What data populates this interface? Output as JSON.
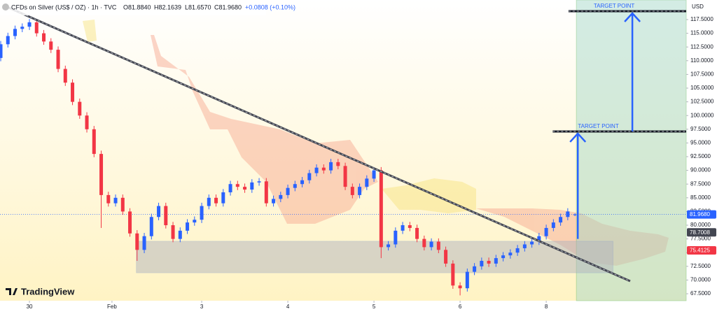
{
  "header": {
    "symbol": "CFDs on Silver (US$ / OZ) · 1h · TVC",
    "open": "O81.8840",
    "high": "H82.1639",
    "low": "L81.6570",
    "close": "C81.9680",
    "change": "+0.0808 (+0.10%)",
    "brand": "TradingView"
  },
  "chart_data": {
    "type": "candlestick",
    "currency": "USD",
    "up_color": "#2962ff",
    "down_color": "#f23645",
    "xlim": [
      -0.1,
      95.5
    ],
    "ylim": [
      66.23,
      121.07
    ],
    "xticks": [
      {
        "value": 4,
        "label": "30"
      },
      {
        "value": 15.5,
        "label": "Feb"
      },
      {
        "value": 28,
        "label": "3"
      },
      {
        "value": 40,
        "label": "4"
      },
      {
        "value": 52,
        "label": "5"
      },
      {
        "value": 64,
        "label": "6"
      },
      {
        "value": 76,
        "label": "8"
      }
    ],
    "yticks": [
      {
        "value": 67.5,
        "label": "67.5000"
      },
      {
        "value": 70,
        "label": "70.0000"
      },
      {
        "value": 72.5,
        "label": "72.5000"
      },
      {
        "value": 75,
        "label": "75.0000"
      },
      {
        "value": 77.5,
        "label": "77.5000"
      },
      {
        "value": 80,
        "label": "80.0000"
      },
      {
        "value": 82.5,
        "label": "82.5000"
      },
      {
        "value": 85,
        "label": "85.0000"
      },
      {
        "value": 87.5,
        "label": "87.5000"
      },
      {
        "value": 90,
        "label": "90.0000"
      },
      {
        "value": 92.5,
        "label": "92.5000"
      },
      {
        "value": 95,
        "label": "95.0000"
      },
      {
        "value": 97.5,
        "label": "97.5000"
      },
      {
        "value": 100,
        "label": "100.0000"
      },
      {
        "value": 102.5,
        "label": "102.5000"
      },
      {
        "value": 105,
        "label": "105.0000"
      },
      {
        "value": 107.5,
        "label": "107.5000"
      },
      {
        "value": 110,
        "label": "110.0000"
      },
      {
        "value": 112.5,
        "label": "112.5000"
      },
      {
        "value": 115,
        "label": "115.0000"
      },
      {
        "value": 117.5,
        "label": "117.5000"
      }
    ],
    "candles": [
      [
        110.5,
        113.6,
        109.9,
        113.0
      ],
      [
        113.0,
        115.1,
        112.4,
        114.5
      ],
      [
        114.5,
        116.4,
        113.9,
        115.8
      ],
      [
        115.8,
        116.8,
        115.2,
        116.2
      ],
      [
        116.2,
        117.6,
        115.6,
        117.0
      ],
      [
        117.0,
        117.6,
        114.4,
        115.0
      ],
      [
        115.0,
        115.6,
        112.9,
        113.5
      ],
      [
        113.5,
        114.1,
        111.4,
        112.0
      ],
      [
        112.0,
        112.6,
        107.9,
        108.5
      ],
      [
        108.5,
        109.1,
        105.4,
        106.0
      ],
      [
        106.0,
        106.6,
        101.9,
        102.5
      ],
      [
        102.5,
        103.1,
        99.4,
        100.0
      ],
      [
        100.0,
        100.6,
        96.9,
        97.5
      ],
      [
        97.5,
        98.1,
        92.4,
        93.0
      ],
      [
        93.0,
        93.6,
        79.5,
        85.5
      ],
      [
        85.5,
        86.1,
        83.4,
        84.0
      ],
      [
        84.0,
        85.6,
        83.4,
        85.0
      ],
      [
        85.0,
        85.6,
        81.9,
        82.5
      ],
      [
        82.5,
        83.1,
        77.9,
        78.5
      ],
      [
        78.5,
        79.1,
        73.5,
        75.5
      ],
      [
        75.5,
        78.6,
        74.9,
        78.0
      ],
      [
        78.0,
        82.1,
        77.4,
        81.5
      ],
      [
        81.5,
        84.1,
        80.9,
        83.5
      ],
      [
        83.5,
        84.1,
        79.4,
        80.0
      ],
      [
        80.0,
        80.6,
        76.9,
        77.5
      ],
      [
        77.5,
        79.6,
        76.9,
        79.0
      ],
      [
        79.0,
        81.1,
        78.4,
        80.5
      ],
      [
        80.5,
        81.6,
        79.9,
        81.0
      ],
      [
        81.0,
        84.1,
        80.4,
        83.5
      ],
      [
        83.5,
        85.6,
        82.9,
        85.0
      ],
      [
        85.0,
        85.6,
        83.4,
        84.0
      ],
      [
        84.0,
        86.6,
        83.4,
        86.0
      ],
      [
        86.0,
        88.1,
        85.4,
        87.5
      ],
      [
        87.5,
        88.1,
        86.4,
        87.0
      ],
      [
        87.0,
        87.6,
        85.9,
        86.5
      ],
      [
        86.5,
        88.4,
        85.9,
        87.8
      ],
      [
        87.8,
        88.6,
        87.2,
        88.0
      ],
      [
        88.0,
        88.6,
        83.4,
        84.0
      ],
      [
        84.0,
        85.4,
        83.4,
        84.8
      ],
      [
        84.8,
        86.1,
        84.2,
        85.5
      ],
      [
        85.5,
        87.4,
        84.9,
        86.8
      ],
      [
        86.8,
        88.1,
        86.2,
        87.5
      ],
      [
        87.5,
        88.8,
        86.9,
        88.2
      ],
      [
        88.2,
        90.1,
        87.6,
        89.5
      ],
      [
        89.5,
        91.1,
        88.9,
        90.5
      ],
      [
        90.5,
        91.1,
        89.4,
        90.0
      ],
      [
        90.0,
        92.1,
        89.4,
        91.5
      ],
      [
        91.5,
        92.1,
        90.2,
        90.8
      ],
      [
        90.8,
        91.4,
        86.4,
        87.0
      ],
      [
        87.0,
        87.6,
        84.9,
        85.5
      ],
      [
        85.5,
        87.6,
        84.9,
        87.0
      ],
      [
        87.0,
        89.1,
        86.4,
        88.5
      ],
      [
        88.5,
        90.6,
        87.9,
        90.0
      ],
      [
        90.0,
        90.6,
        74.0,
        76.0
      ],
      [
        76.0,
        77.1,
        75.4,
        76.5
      ],
      [
        76.5,
        79.6,
        75.9,
        79.0
      ],
      [
        79.0,
        80.6,
        78.4,
        80.0
      ],
      [
        80.0,
        80.6,
        78.9,
        79.5
      ],
      [
        79.5,
        80.1,
        76.9,
        77.5
      ],
      [
        77.5,
        78.1,
        75.4,
        76.0
      ],
      [
        76.0,
        77.6,
        75.4,
        77.0
      ],
      [
        77.0,
        77.6,
        74.9,
        75.5
      ],
      [
        75.5,
        76.1,
        72.4,
        73.0
      ],
      [
        73.0,
        73.6,
        68.4,
        69.0
      ],
      [
        69.0,
        69.6,
        67.2,
        68.5
      ],
      [
        68.5,
        72.1,
        67.9,
        71.5
      ],
      [
        71.5,
        73.1,
        70.9,
        72.5
      ],
      [
        72.5,
        74.1,
        71.9,
        73.5
      ],
      [
        73.5,
        74.1,
        72.4,
        73.0
      ],
      [
        73.0,
        74.6,
        72.4,
        74.0
      ],
      [
        74.0,
        75.1,
        73.4,
        74.5
      ],
      [
        74.5,
        75.6,
        73.9,
        75.0
      ],
      [
        75.0,
        76.4,
        74.4,
        75.8
      ],
      [
        75.8,
        77.1,
        75.2,
        76.5
      ],
      [
        76.5,
        77.6,
        75.9,
        77.0
      ],
      [
        77.0,
        78.6,
        76.4,
        78.0
      ],
      [
        78.0,
        80.1,
        77.4,
        79.5
      ],
      [
        79.5,
        81.1,
        78.9,
        80.5
      ],
      [
        80.5,
        82.1,
        79.9,
        81.5
      ],
      [
        81.5,
        83.1,
        80.9,
        82.5
      ],
      [
        81.884,
        82.1639,
        81.657,
        81.968
      ]
    ],
    "trendline": {
      "x": [
        0.9,
        87.7
      ],
      "y": [
        119.8,
        69.8
      ],
      "color": "#434651"
    },
    "support_zone": {
      "x": [
        18.9,
        85.3
      ],
      "y": [
        71.33,
        77.07
      ],
      "color": "#b2b5be"
    },
    "target_zone": {
      "x": [
        80.2,
        95.5
      ],
      "color": "#9fd6c6"
    },
    "targets": [
      {
        "label": "TARGET POINT",
        "value": 97.1,
        "x": [
          76.9,
          95.5
        ],
        "from": 77.5,
        "arrow_x": 80.4
      },
      {
        "label": "TARGET POINT",
        "value": 119.03,
        "x": [
          79.1,
          95.5
        ],
        "from": 97.1,
        "arrow_x": 88.0
      }
    ],
    "price_labels": [
      {
        "value": 81.968,
        "label": "81.9680",
        "color": "#2962ff"
      },
      {
        "value": 78.7008,
        "label": "78.7008",
        "color": "#434651"
      },
      {
        "value": 75.4125,
        "label": "75.4125",
        "color": "#f23645"
      }
    ]
  }
}
